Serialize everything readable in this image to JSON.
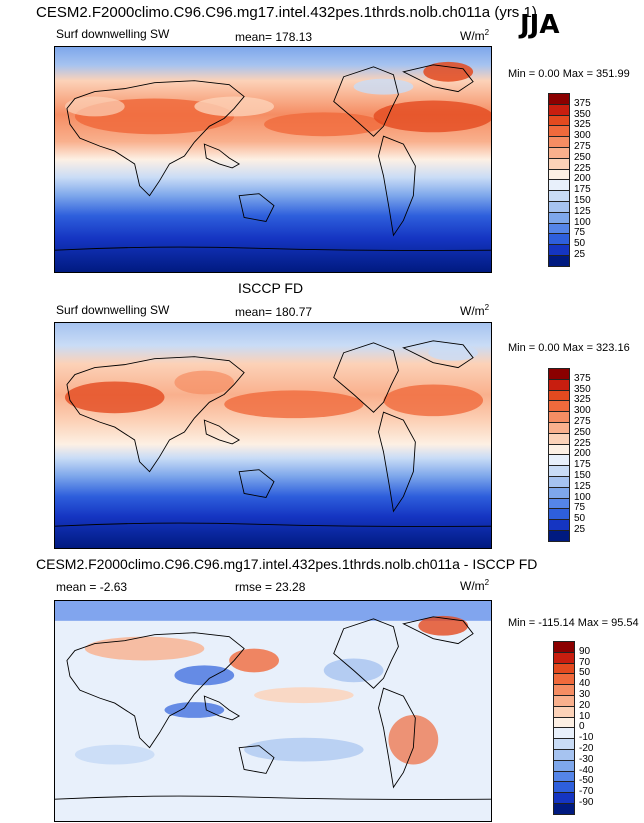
{
  "main_title": "CESM2.F2000climo.C96.C96.mg17.intel.432pes.1thrds.nolb.ch011a (yrs 1)",
  "season": "JJA",
  "panels": [
    {
      "variable": "Surf downwelling SW",
      "stat": "mean= 178.13",
      "units": "W/m",
      "units_sup": "2",
      "minmax": "Min =   0.00 Max = 351.99",
      "palette": "abs"
    },
    {
      "title": "ISCCP FD",
      "variable": "Surf downwelling SW",
      "stat": "mean= 180.77",
      "units": "W/m",
      "units_sup": "2",
      "minmax": "Min =   0.00 Max = 323.16",
      "palette": "abs"
    },
    {
      "title": "CESM2.F2000climo.C96.C96.mg17.intel.432pes.1thrds.nolb.ch011a - ISCCP FD",
      "mean": "mean =  -2.63",
      "rmse": "rmse =  23.28",
      "units": "W/m",
      "units_sup": "2",
      "minmax": "Min = -115.14 Max =  95.54",
      "palette": "diff"
    }
  ],
  "colorbars": {
    "abs_levels": [
      "375",
      "350",
      "325",
      "300",
      "275",
      "250",
      "225",
      "200",
      "175",
      "150",
      "125",
      "100",
      "75",
      "50",
      "25"
    ],
    "abs_colors": [
      "#8b0000",
      "#c81e0f",
      "#e34a1f",
      "#f06a3c",
      "#f58d63",
      "#f9b08d",
      "#fcd2b8",
      "#fdf0e4",
      "#e8f0fb",
      "#c9dcf6",
      "#a6c3f0",
      "#7ea7eb",
      "#5585e8",
      "#2e5fdc",
      "#1535c2",
      "#001a80"
    ],
    "diff_levels": [
      "90",
      "70",
      "50",
      "40",
      "30",
      "20",
      "10",
      "0",
      "-10",
      "-20",
      "-30",
      "-40",
      "-50",
      "-70",
      "-90"
    ],
    "diff_colors": [
      "#8b0000",
      "#c81e0f",
      "#e34a1f",
      "#f06a3c",
      "#f58d63",
      "#f9b08d",
      "#fcd2b8",
      "#fdf0e4",
      "#e8f0fb",
      "#c9dcf6",
      "#a6c3f0",
      "#7ea7eb",
      "#5585e8",
      "#2e5fdc",
      "#1535c2",
      "#001a80"
    ]
  }
}
